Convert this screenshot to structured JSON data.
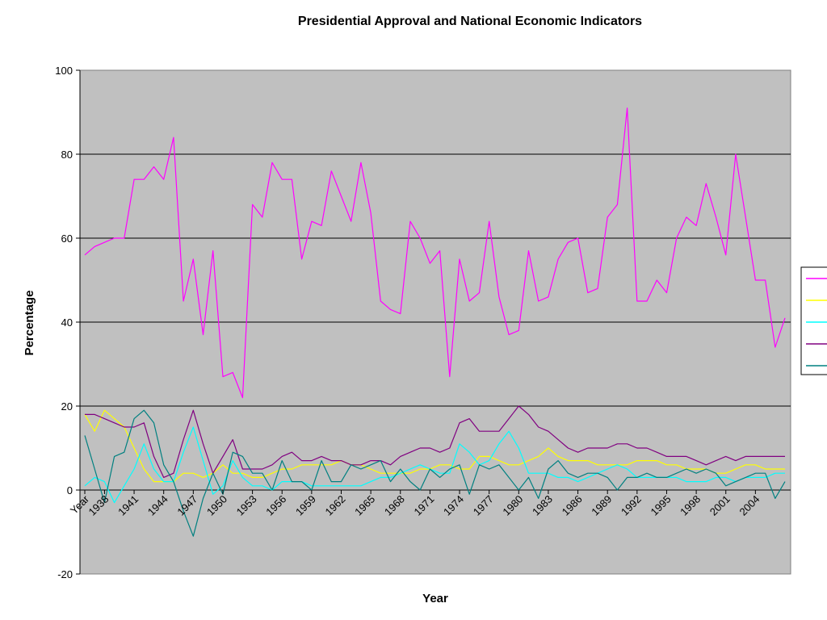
{
  "chart_data": {
    "type": "line",
    "title": "Presidential Approval and National Economic Indicators",
    "xlabel": "Year",
    "ylabel": "Percentage",
    "ylim": [
      -20,
      100
    ],
    "yticks": [
      "-20",
      "0",
      "20",
      "40",
      "60",
      "80",
      "100"
    ],
    "x_tick_labels": [
      "Year",
      "1938",
      "1941",
      "1944",
      "1947",
      "1950",
      "1953",
      "1956",
      "1959",
      "1962",
      "1965",
      "1968",
      "1971",
      "1974",
      "1977",
      "1980",
      "1983",
      "1986",
      "1989",
      "1992",
      "1995",
      "1998",
      "2001",
      "2004"
    ],
    "x_start": 1936,
    "grid": "horizontal major",
    "legend_placement": "right",
    "plot_background": "#c0c0c0",
    "series": [
      {
        "color": "#ff00ff",
        "values": [
          56,
          58,
          59,
          60,
          60,
          74,
          74,
          77,
          74,
          84,
          45,
          55,
          37,
          57,
          27,
          28,
          22,
          68,
          65,
          78,
          74,
          74,
          55,
          64,
          63,
          76,
          70,
          64,
          78,
          66,
          45,
          43,
          42,
          64,
          60,
          54,
          57,
          27,
          55,
          45,
          47,
          64,
          46,
          37,
          38,
          57,
          45,
          46,
          55,
          59,
          60,
          47,
          48,
          65,
          68,
          91,
          45,
          45,
          50,
          47,
          60,
          65,
          63,
          73,
          65,
          56,
          80,
          65,
          50,
          50,
          34,
          41
        ]
      },
      {
        "color": "#ffff00",
        "values": [
          18,
          14,
          19,
          17,
          15,
          10,
          5,
          2,
          2,
          2,
          4,
          4,
          3,
          4,
          6,
          4,
          4,
          3,
          3,
          4,
          5,
          5,
          6,
          6,
          6,
          6,
          7,
          6,
          6,
          5,
          4,
          4,
          4,
          4,
          5,
          5,
          6,
          6,
          5,
          5,
          8,
          8,
          7,
          6,
          6,
          7,
          8,
          10,
          8,
          7,
          7,
          7,
          6,
          6,
          6,
          6,
          7,
          7,
          7,
          6,
          6,
          5,
          5,
          5,
          4,
          4,
          5,
          6,
          6,
          5,
          5,
          5
        ]
      },
      {
        "color": "#00ffff",
        "values": [
          1,
          3,
          2,
          -3,
          1,
          5,
          11,
          5,
          2,
          2,
          9,
          15,
          7,
          -1,
          1,
          7,
          3,
          1,
          1,
          0,
          2,
          2,
          2,
          1,
          1,
          1,
          1,
          1,
          1,
          2,
          3,
          3,
          4,
          5,
          6,
          5,
          4,
          4,
          11,
          9,
          6,
          7,
          11,
          14,
          10,
          4,
          4,
          4,
          3,
          3,
          2,
          3,
          4,
          5,
          6,
          5,
          3,
          3,
          3,
          3,
          3,
          2,
          2,
          2,
          3,
          3,
          2,
          3,
          3,
          3,
          4,
          4
        ]
      },
      {
        "color": "#800080",
        "values": [
          18,
          18,
          17,
          16,
          15,
          15,
          16,
          8,
          3,
          4,
          12,
          19,
          11,
          4,
          8,
          12,
          5,
          5,
          5,
          6,
          8,
          9,
          7,
          7,
          8,
          7,
          7,
          6,
          6,
          7,
          7,
          6,
          8,
          9,
          10,
          10,
          9,
          10,
          16,
          17,
          14,
          14,
          14,
          17,
          20,
          18,
          15,
          14,
          12,
          10,
          9,
          10,
          10,
          10,
          11,
          11,
          10,
          10,
          9,
          8,
          8,
          8,
          7,
          6,
          7,
          8,
          7,
          8,
          8,
          8,
          8,
          8
        ]
      },
      {
        "color": "#008080",
        "values": [
          13,
          5,
          -3,
          8,
          9,
          17,
          19,
          16,
          6,
          2,
          -5,
          -11,
          -2,
          4,
          -1,
          9,
          8,
          4,
          4,
          0,
          7,
          2,
          2,
          0,
          7,
          2,
          2,
          6,
          5,
          6,
          7,
          2,
          5,
          2,
          0,
          5,
          3,
          5,
          6,
          -1,
          6,
          5,
          6,
          3,
          0,
          3,
          -2,
          5,
          7,
          4,
          3,
          4,
          4,
          3,
          0,
          3,
          3,
          4,
          3,
          3,
          4,
          5,
          4,
          5,
          4,
          1,
          2,
          3,
          4,
          4,
          -2,
          2
        ]
      }
    ]
  }
}
